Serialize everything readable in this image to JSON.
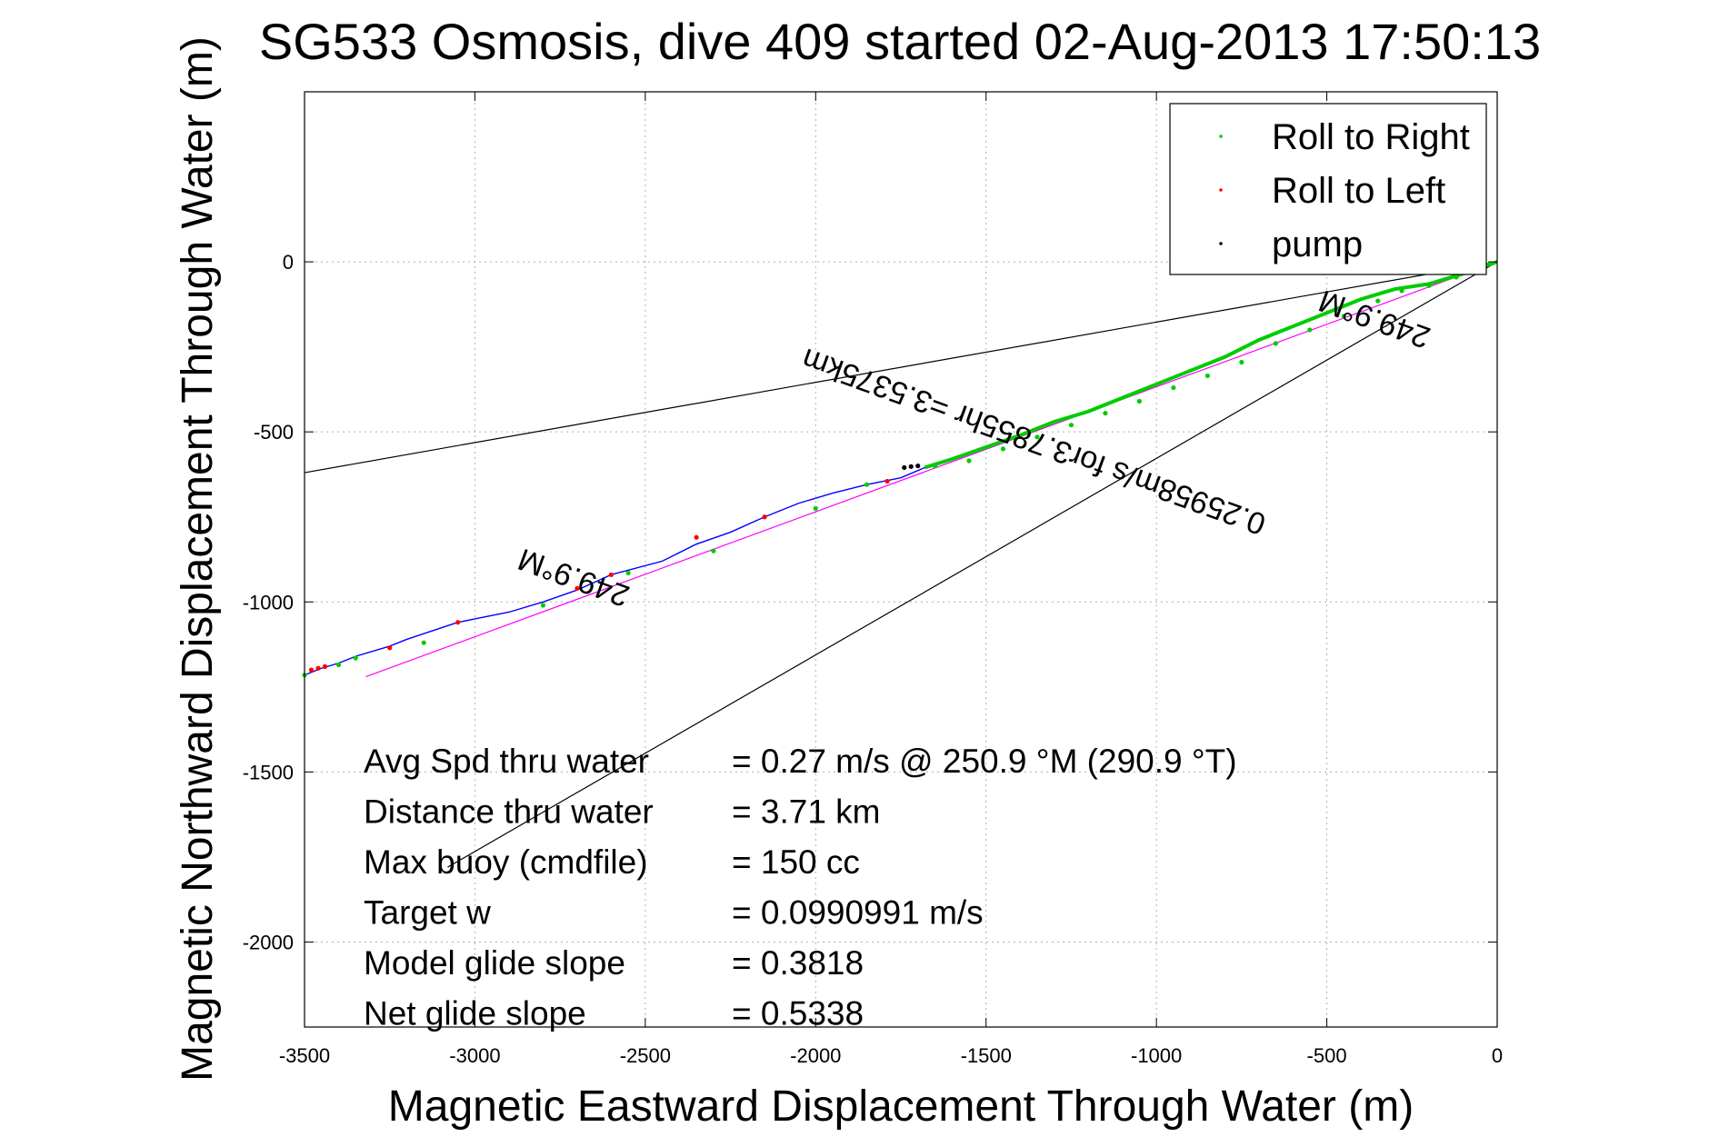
{
  "chart_data": {
    "type": "line",
    "title": "SG533 Osmosis, dive 409 started 02-Aug-2013 17:50:13",
    "xlabel": "Magnetic Eastward Displacement Through Water (m)",
    "ylabel": "Magnetic Northward Displacement Through Water (m)",
    "xlim": [
      -3500,
      0
    ],
    "ylim": [
      -2250,
      500
    ],
    "xticks": [
      -3500,
      -3000,
      -2500,
      -2000,
      -1500,
      -1000,
      -500,
      0
    ],
    "yticks": [
      -2000,
      -1500,
      -1000,
      -500,
      0
    ],
    "grid": true,
    "legend": {
      "placement": "top-right",
      "entries": [
        {
          "label": "Roll to Right",
          "color": "#00cc00"
        },
        {
          "label": "Roll to Left",
          "color": "#ff0000"
        },
        {
          "label": "pump",
          "color": "#000000"
        }
      ]
    },
    "track": {
      "color": "#0000ff",
      "x": [
        0,
        -100,
        -200,
        -300,
        -400,
        -500,
        -600,
        -700,
        -800,
        -900,
        -1000,
        -1100,
        -1200,
        -1300,
        -1400,
        -1500,
        -1600,
        -1680,
        -1750,
        -1850,
        -1950,
        -2050,
        -2150,
        -2250,
        -2350,
        -2450,
        -2600,
        -2700,
        -2800,
        -2900,
        -3000,
        -3050,
        -3200,
        -3250,
        -3350,
        -3400,
        -3450,
        -3500
      ],
      "y": [
        0,
        -35,
        -65,
        -80,
        -110,
        -150,
        -190,
        -230,
        -280,
        -320,
        -360,
        -400,
        -440,
        -470,
        -510,
        -545,
        -580,
        -605,
        -635,
        -655,
        -680,
        -710,
        -750,
        -795,
        -830,
        -880,
        -920,
        -965,
        -1000,
        -1030,
        -1050,
        -1060,
        -1110,
        -1130,
        -1160,
        -1180,
        -1195,
        -1215
      ]
    },
    "roll_right_points": {
      "x": [
        -50,
        -120,
        -200,
        -280,
        -350,
        -450,
        -550,
        -650,
        -750,
        -850,
        -950,
        -1050,
        -1150,
        -1250,
        -1350,
        -1450,
        -1550,
        -1650,
        -1850,
        -2000,
        -2300,
        -2550,
        -2800,
        -3150,
        -3350,
        -3400,
        -3500
      ],
      "y": [
        -20,
        -45,
        -70,
        -85,
        -115,
        -160,
        -200,
        -240,
        -295,
        -335,
        -370,
        -410,
        -445,
        -480,
        -515,
        -550,
        -585,
        -600,
        -655,
        -725,
        -850,
        -915,
        -1010,
        -1120,
        -1165,
        -1185,
        -1215
      ]
    },
    "roll_left_points": {
      "x": [
        -1790,
        -2150,
        -2350,
        -2600,
        -2700,
        -3050,
        -3250,
        -3440,
        -3460,
        -3480
      ],
      "y": [
        -645,
        -750,
        -810,
        -920,
        -960,
        -1060,
        -1135,
        -1190,
        -1195,
        -1200
      ]
    },
    "pump_points": {
      "x": [
        -1700,
        -1720,
        -1740
      ],
      "y": [
        -600,
        -602,
        -605
      ]
    },
    "reference_lines": [
      {
        "name": "",
        "color": "#000000",
        "x": [
          0,
          -3500
        ],
        "y": [
          0,
          -620
        ]
      },
      {
        "name": "",
        "color": "#000000",
        "x": [
          0,
          -3080
        ],
        "y": [
          0,
          -1780
        ]
      },
      {
        "name": "",
        "color": "#ff00ff",
        "x": [
          0,
          -3320
        ],
        "y": [
          0,
          -1220
        ]
      }
    ],
    "annotations": [
      {
        "text": "249.9°M",
        "x": -2700,
        "y": -900,
        "rotation": 200
      },
      {
        "text": "249.9°M",
        "x": -350,
        "y": -140,
        "rotation": 200
      },
      {
        "text": "0.25958m/s for3.7855hr =3.5375km",
        "x": -1350,
        "y": -500,
        "rotation": 200
      }
    ],
    "stats": [
      {
        "label": "Avg Spd thru water",
        "value": "=  0.27 m/s @ 250.9 °M (290.9 °T)"
      },
      {
        "label": "Distance thru water",
        "value": "=  3.71 km"
      },
      {
        "label": "Max buoy (cmdfile)",
        "value": "= 150 cc"
      },
      {
        "label": "Target w",
        "value": "= 0.0990991 m/s"
      },
      {
        "label": "Model glide slope",
        "value": "= 0.3818"
      },
      {
        "label": "Net glide slope",
        "value": "= 0.5338"
      }
    ]
  }
}
